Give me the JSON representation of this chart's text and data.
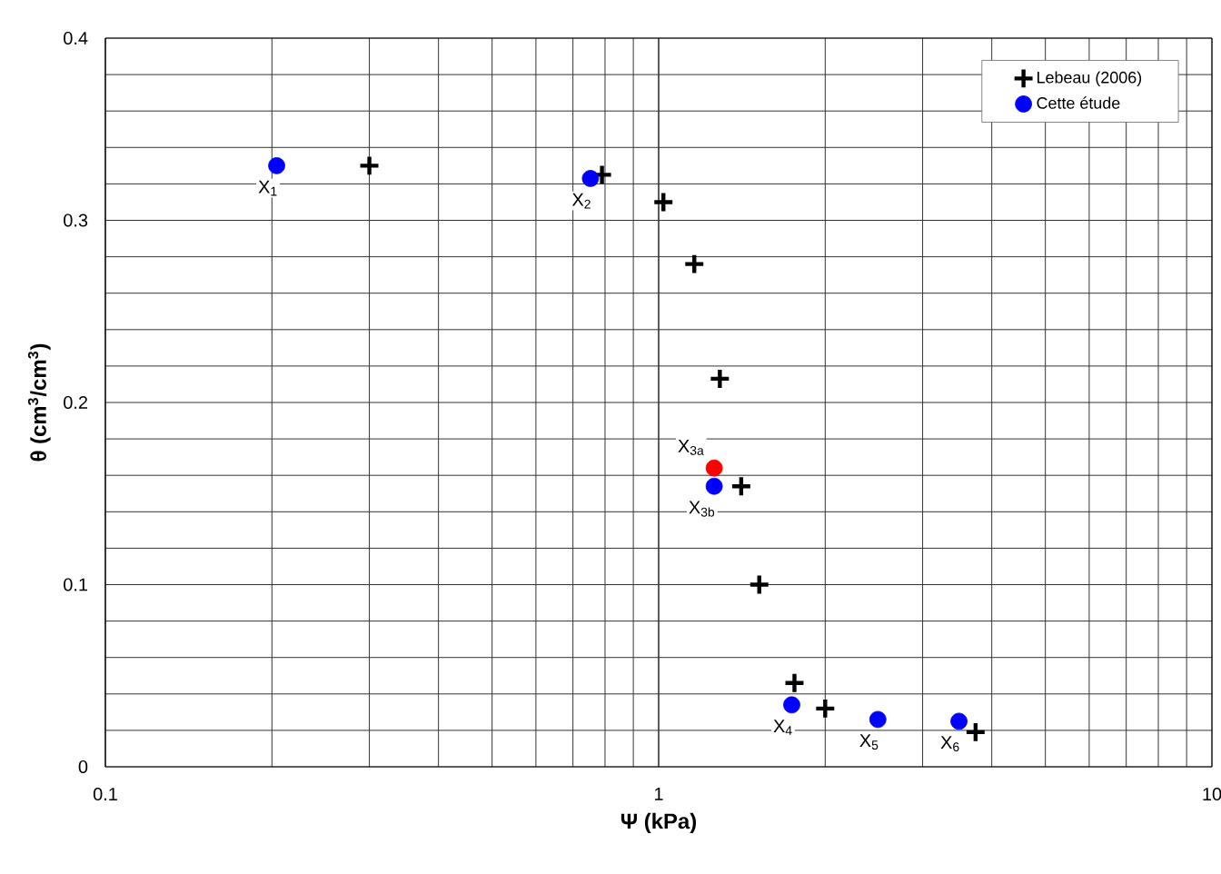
{
  "chart_data": {
    "type": "scatter",
    "xlabel": "**Ψ (kPa)**",
    "ylabel": "**θ (cm$^{3}$/cm$^{3}$)**",
    "log": "x",
    "xlim": [
      0.1,
      10
    ],
    "xticks": [
      0.1,
      1,
      10
    ],
    "ylim": [
      0,
      0.4
    ],
    "yticks": [
      0,
      0.1,
      0.2,
      0.3,
      0.4
    ],
    "grid": true,
    "legend": "top right",
    "series": [
      {
        "name": "Lebeau (2006)",
        "color": "#000000",
        "marker": "cross",
        "x": [
          0.3,
          0.79,
          1.02,
          1.16,
          1.29,
          1.41,
          1.52,
          1.76,
          2.0,
          3.74
        ],
        "values": [
          0.33,
          0.325,
          0.31,
          0.276,
          0.213,
          0.154,
          0.1,
          0.046,
          0.032,
          0.019
        ]
      },
      {
        "name": "Cette étude",
        "color": "#0000ff",
        "marker": "circle",
        "x": [
          0.204,
          0.753,
          1.26,
          1.74,
          2.49,
          3.49
        ],
        "values": [
          0.33,
          0.323,
          0.154,
          0.034,
          0.026,
          0.025
        ]
      },
      {
        "color": "#ff0000",
        "marker": "circle",
        "x": [
          1.26
        ],
        "values": [
          0.164
        ]
      }
    ],
    "annotations": [
      {
        "text": "X$_{1}$",
        "x": 0.204,
        "y": 0.33
      },
      {
        "text": "X$_{2}$",
        "x": 0.753,
        "y": 0.323
      },
      {
        "text": "X$_{3a}$",
        "x": 1.26,
        "y": 0.164
      },
      {
        "text": "X$_{3b}$",
        "x": 1.26,
        "y": 0.154
      },
      {
        "text": "X$_{4}$",
        "x": 1.74,
        "y": 0.034
      },
      {
        "text": "X$_{5}$",
        "x": 2.49,
        "y": 0.026
      },
      {
        "text": "X$_{6}$",
        "x": 3.49,
        "y": 0.025
      }
    ]
  }
}
